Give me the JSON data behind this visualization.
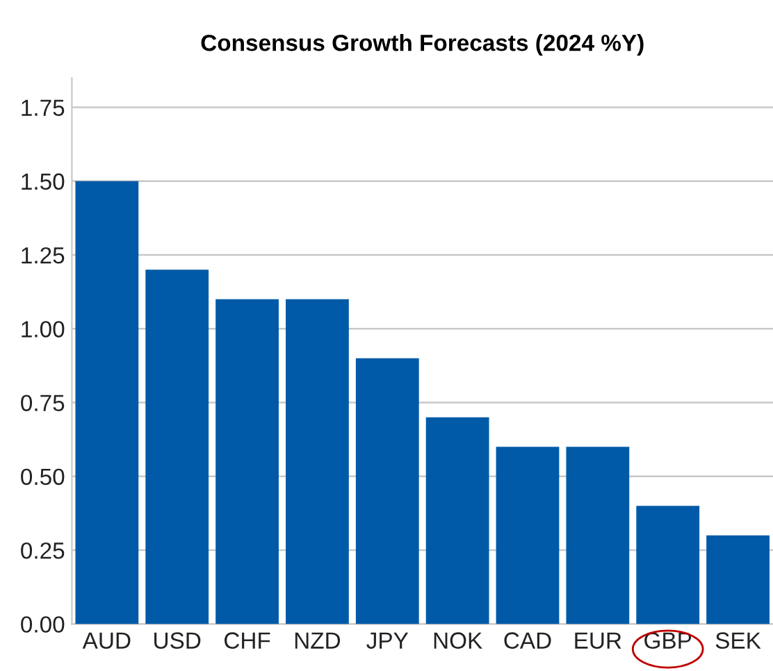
{
  "chart_data": {
    "type": "bar",
    "title": "Consensus Growth Forecasts (2024 %Y)",
    "categories": [
      "AUD",
      "USD",
      "CHF",
      "NZD",
      "JPY",
      "NOK",
      "CAD",
      "EUR",
      "GBP",
      "SEK"
    ],
    "values": [
      1.5,
      1.2,
      1.1,
      1.1,
      0.9,
      0.7,
      0.6,
      0.6,
      0.4,
      0.3
    ],
    "color": "#005aa7",
    "ylim": [
      0,
      1.85
    ],
    "yticks": [
      {
        "value": 0,
        "label": "0.00"
      },
      {
        "value": 0.25,
        "label": "0.25"
      },
      {
        "value": 0.5,
        "label": "0.50"
      },
      {
        "value": 0.75,
        "label": "0.75"
      },
      {
        "value": 1,
        "label": "1.00"
      },
      {
        "value": 1.25,
        "label": "1.25"
      },
      {
        "value": 1.5,
        "label": "1.50"
      },
      {
        "value": 1.75,
        "label": "1.75"
      }
    ],
    "grid": "y"
  }
}
